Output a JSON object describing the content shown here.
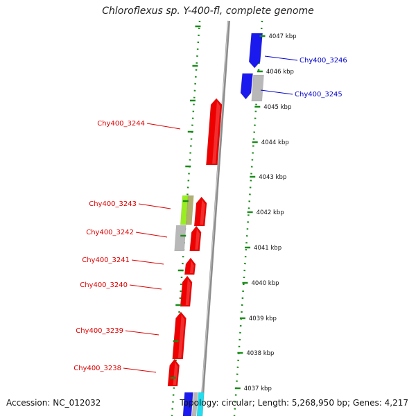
{
  "title": "Chloroflexus sp. Y-400-fl, complete genome",
  "accession": "Accession: NC_012032",
  "summary": "Topology: circular; Length: 5,268,950 bp; Genes: 4,217",
  "colors": {
    "forward_gene": "#ee0000",
    "reverse_gene": "#1a1aee",
    "grey_gene": "#b8b8b8",
    "green_gene": "#99ee22",
    "olive_gene": "#b0b070",
    "cyan_gene": "#22ddee",
    "dotted_track": "#1a8c1a",
    "backbone": "#8c8c8c",
    "forward_label": "#dd0000",
    "reverse_label": "#0000cc"
  },
  "kbp_ticks": [
    "4047 kbp",
    "4046 kbp",
    "4045 kbp",
    "4044 kbp",
    "4043 kbp",
    "4042 kbp",
    "4041 kbp",
    "4040 kbp",
    "4039 kbp",
    "4038 kbp",
    "4037 kbp"
  ],
  "gene_labels": {
    "forward": [
      "Chy400_3244",
      "Chy400_3243",
      "Chy400_3242",
      "Chy400_3241",
      "Chy400_3240",
      "Chy400_3239",
      "Chy400_3238"
    ],
    "reverse": [
      "Chy400_3246",
      "Chy400_3245"
    ]
  }
}
